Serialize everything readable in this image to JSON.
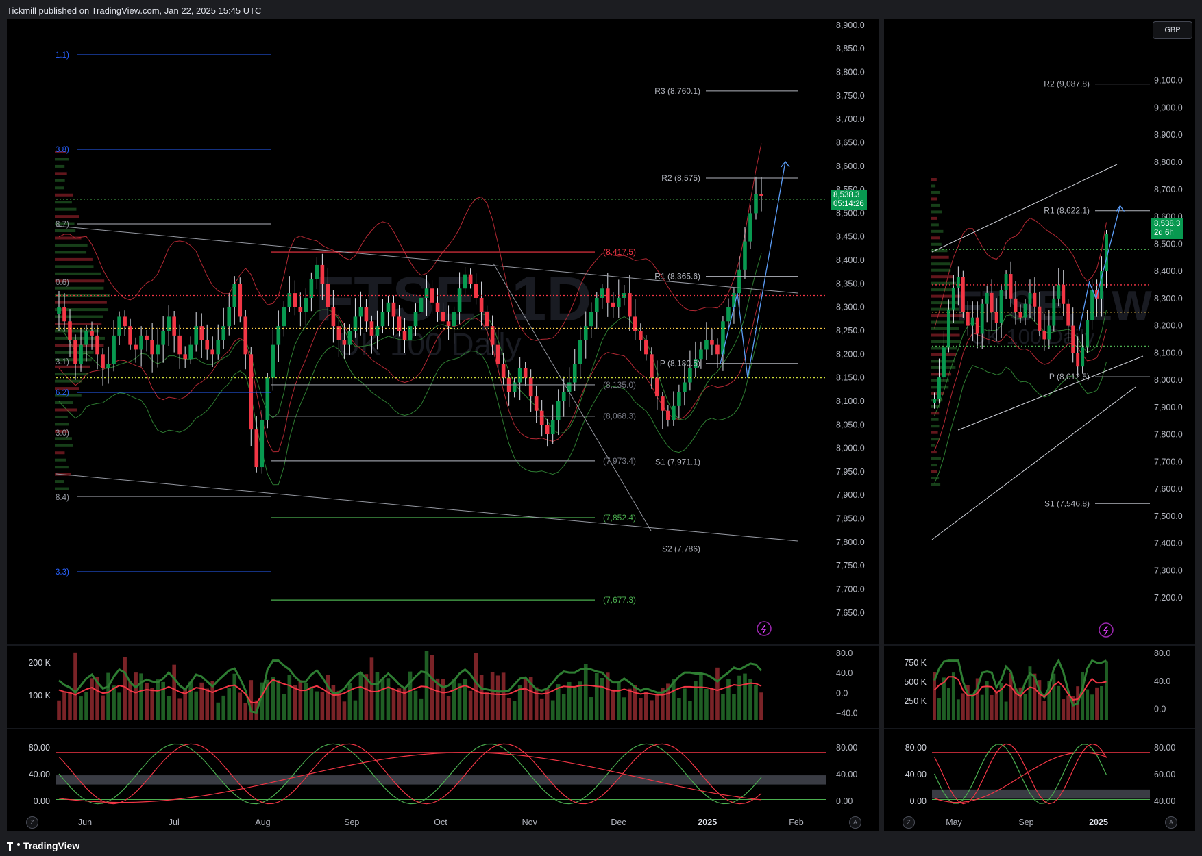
{
  "header": {
    "publisher_text": "Tickmill published on TradingView.com, Jan 22, 2025 15:45 UTC"
  },
  "footer": {
    "brand": "TradingView"
  },
  "currency_button": "GBP",
  "colors": {
    "bull": "#089950",
    "bear": "#f23645",
    "bands": "#b22833",
    "envelope": "#2e7d32",
    "pivot": "#b2b5be",
    "fib": "#2962ff",
    "projection": "#5b9cf6",
    "rsi": "#2e7d32",
    "stoch_k": "#4caf50",
    "stoch_d": "#f23645"
  },
  "chart_data": [
    {
      "id": "daily",
      "type": "candlestick",
      "title": "FTSE, 1D",
      "subtitle": "UK 100 Daily",
      "price_axis": {
        "ylim": [
          7625,
          8910
        ],
        "ticks": [
          "8,900.0",
          "8,850.0",
          "8,800.0",
          "8,750.0",
          "8,700.0",
          "8,650.0",
          "8,600.0",
          "8,550.0",
          "8,500.0",
          "8,450.0",
          "8,400.0",
          "8,350.0",
          "8,300.0",
          "8,250.0",
          "8,200.0",
          "8,150.0",
          "8,100.0",
          "8,050.0",
          "8,000.0",
          "7,950.0",
          "7,900.0",
          "7,850.0",
          "7,800.0",
          "7,750.0",
          "7,700.0",
          "7,650.0"
        ]
      },
      "time_axis": [
        "Jun",
        "Jul",
        "Aug",
        "Sep",
        "Oct",
        "Nov",
        "Dec",
        "2025",
        "Feb"
      ],
      "last_price": {
        "value": "8,538.3",
        "countdown": "05:14:26"
      },
      "series_close": [
        8300,
        8270,
        8230,
        8180,
        8220,
        8250,
        8240,
        8200,
        8170,
        8180,
        8240,
        8280,
        8260,
        8220,
        8210,
        8240,
        8230,
        8200,
        8220,
        8250,
        8280,
        8240,
        8200,
        8190,
        8220,
        8260,
        8230,
        8210,
        8200,
        8230,
        8260,
        8300,
        8350,
        8280,
        8200,
        8040,
        7960,
        8060,
        8150,
        8220,
        8260,
        8300,
        8330,
        8300,
        8290,
        8320,
        8360,
        8390,
        8350,
        8300,
        8260,
        8230,
        8220,
        8250,
        8280,
        8300,
        8270,
        8240,
        8260,
        8290,
        8310,
        8280,
        8250,
        8230,
        8260,
        8290,
        8320,
        8340,
        8310,
        8290,
        8270,
        8260,
        8290,
        8340,
        8370,
        8350,
        8320,
        8290,
        8260,
        8220,
        8180,
        8150,
        8120,
        8140,
        8170,
        8150,
        8110,
        8080,
        8050,
        8030,
        8060,
        8100,
        8120,
        8140,
        8180,
        8230,
        8260,
        8290,
        8320,
        8340,
        8310,
        8300,
        8320,
        8330,
        8280,
        8250,
        8230,
        8200,
        8150,
        8110,
        8080,
        8060,
        8090,
        8120,
        8140,
        8170,
        8190,
        8210,
        8230,
        8220,
        8200,
        8270,
        8300,
        8330,
        8380,
        8440,
        8500,
        8540,
        8538
      ],
      "levels": [
        {
          "label": "R3 (8,760.1)",
          "value": 8760.1
        },
        {
          "label": "R2 (8,575)",
          "value": 8575
        },
        {
          "label": "R1 (8,365.6)",
          "value": 8365.6
        },
        {
          "label": "P (8,180.5)",
          "value": 8180.5
        },
        {
          "label": "S1 (7,971.1)",
          "value": 7971.1
        },
        {
          "label": "S2 (7,786)",
          "value": 7786
        }
      ],
      "fib_levels": [
        {
          "label": "(8,417.5)",
          "value": 8417.5
        },
        {
          "label": "(8,135.0)",
          "value": 8135.0
        },
        {
          "label": "(8,068.3)",
          "value": 8068.3
        },
        {
          "label": "(7,973.4)",
          "value": 7973.4
        },
        {
          "label": "(7,852.4)",
          "value": 7852.4
        },
        {
          "label": "(7,677.3)",
          "value": 7677.3
        }
      ],
      "left_fib_labels": [
        "1.1)",
        "3.8)",
        "8.7)",
        "0.6)",
        "3.1)",
        "6.2)",
        "3.0)",
        "8.4)",
        "3.3)"
      ],
      "volume_axis": [
        "200 K",
        "100 K"
      ],
      "rsi_axis": [
        "80.0",
        "40.0",
        "0.0",
        "−40.0"
      ],
      "stoch_axis_left": [
        "80.00",
        "40.00",
        "0.00"
      ],
      "stoch_axis_right": [
        "80.00",
        "40.00",
        "0.00"
      ]
    },
    {
      "id": "weekly",
      "type": "candlestick",
      "title": "FTSE, 1W",
      "subtitle": "UK 100 Daily",
      "price_axis": {
        "ylim": [
          7120,
          9220
        ],
        "ticks": [
          "9,100.0",
          "9,000.0",
          "8,900.0",
          "8,800.0",
          "8,700.0",
          "8,600.0",
          "8,500.0",
          "8,400.0",
          "8,300.0",
          "8,200.0",
          "8,100.0",
          "8,000.0",
          "7,900.0",
          "7,800.0",
          "7,700.0",
          "7,600.0",
          "7,500.0",
          "7,400.0",
          "7,300.0",
          "7,200.0"
        ]
      },
      "time_axis": [
        "May",
        "Sep",
        "2025"
      ],
      "last_price": {
        "value": "8,538.3",
        "countdown": "2d 6h"
      },
      "series_close": [
        7930,
        8010,
        8120,
        8260,
        8340,
        8380,
        8250,
        8200,
        8230,
        8170,
        8280,
        8320,
        8250,
        8210,
        8330,
        8390,
        8300,
        8250,
        8230,
        8280,
        8320,
        8270,
        8180,
        8150,
        8200,
        8300,
        8350,
        8280,
        8200,
        8100,
        8050,
        8120,
        8220,
        8330,
        8300,
        8400,
        8538
      ],
      "levels": [
        {
          "label": "R2 (9,087.8)",
          "value": 9087.8
        },
        {
          "label": "R1 (8,622.1)",
          "value": 8622.1
        },
        {
          "label": "P (8,012.5)",
          "value": 8012.5
        },
        {
          "label": "S1 (7,546.8)",
          "value": 7546.8
        }
      ],
      "volume_axis": [
        "750 K",
        "500 K",
        "250 K"
      ],
      "rsi_axis": [
        "80.0",
        "40.0",
        "0.0"
      ],
      "stoch_axis_left": [
        "80.00",
        "40.00",
        "0.00"
      ],
      "stoch_axis_right": [
        "80.00",
        "60.00",
        "40.00"
      ]
    }
  ],
  "axis_buttons": {
    "left": "Z",
    "right": "A"
  }
}
